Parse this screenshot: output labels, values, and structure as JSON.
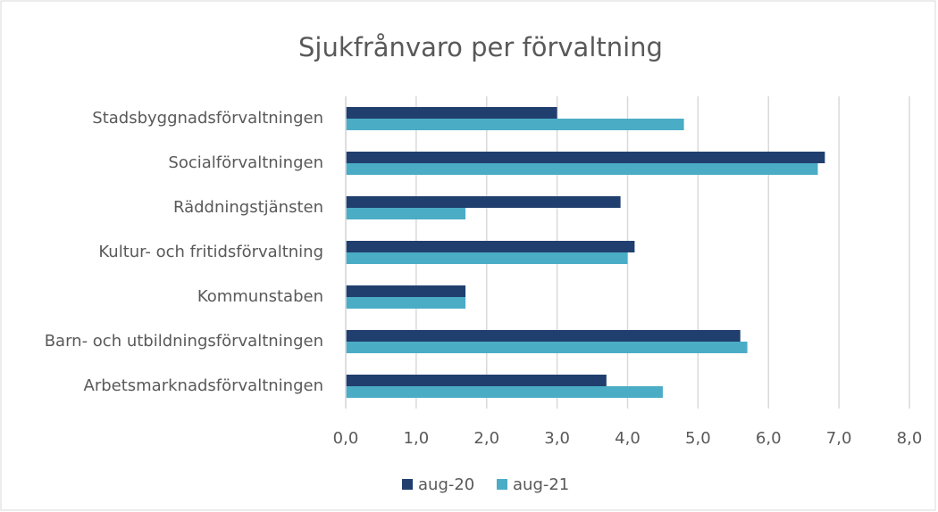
{
  "chart_data": {
    "type": "hbar",
    "title": "Sjukfrånvaro per förvaltning",
    "categories": [
      "Stadsbyggnadsförvaltningen",
      "Socialförvaltningen",
      "Räddningstjänsten",
      "Kultur- och fritidsförvaltning",
      "Kommunstaben",
      "Barn- och utbildningsförvaltningen",
      "Arbetsmarknadsförvaltningen"
    ],
    "series": [
      {
        "name": "aug-20",
        "color": "#203f6e",
        "values": [
          3.0,
          6.8,
          3.9,
          4.1,
          1.7,
          5.6,
          3.7
        ]
      },
      {
        "name": "aug-21",
        "color": "#4bacc6",
        "values": [
          4.8,
          6.7,
          1.7,
          4.0,
          1.7,
          5.7,
          4.5
        ]
      }
    ],
    "xlim": [
      0,
      8
    ],
    "xticks": [
      {
        "value": 0,
        "label": "0,0"
      },
      {
        "value": 1,
        "label": "1,0"
      },
      {
        "value": 2,
        "label": "2,0"
      },
      {
        "value": 3,
        "label": "3,0"
      },
      {
        "value": 4,
        "label": "4,0"
      },
      {
        "value": 5,
        "label": "5,0"
      },
      {
        "value": 6,
        "label": "6,0"
      },
      {
        "value": 7,
        "label": "7,0"
      },
      {
        "value": 8,
        "label": "8,0"
      }
    ],
    "grid": true,
    "legend": "bottom"
  }
}
